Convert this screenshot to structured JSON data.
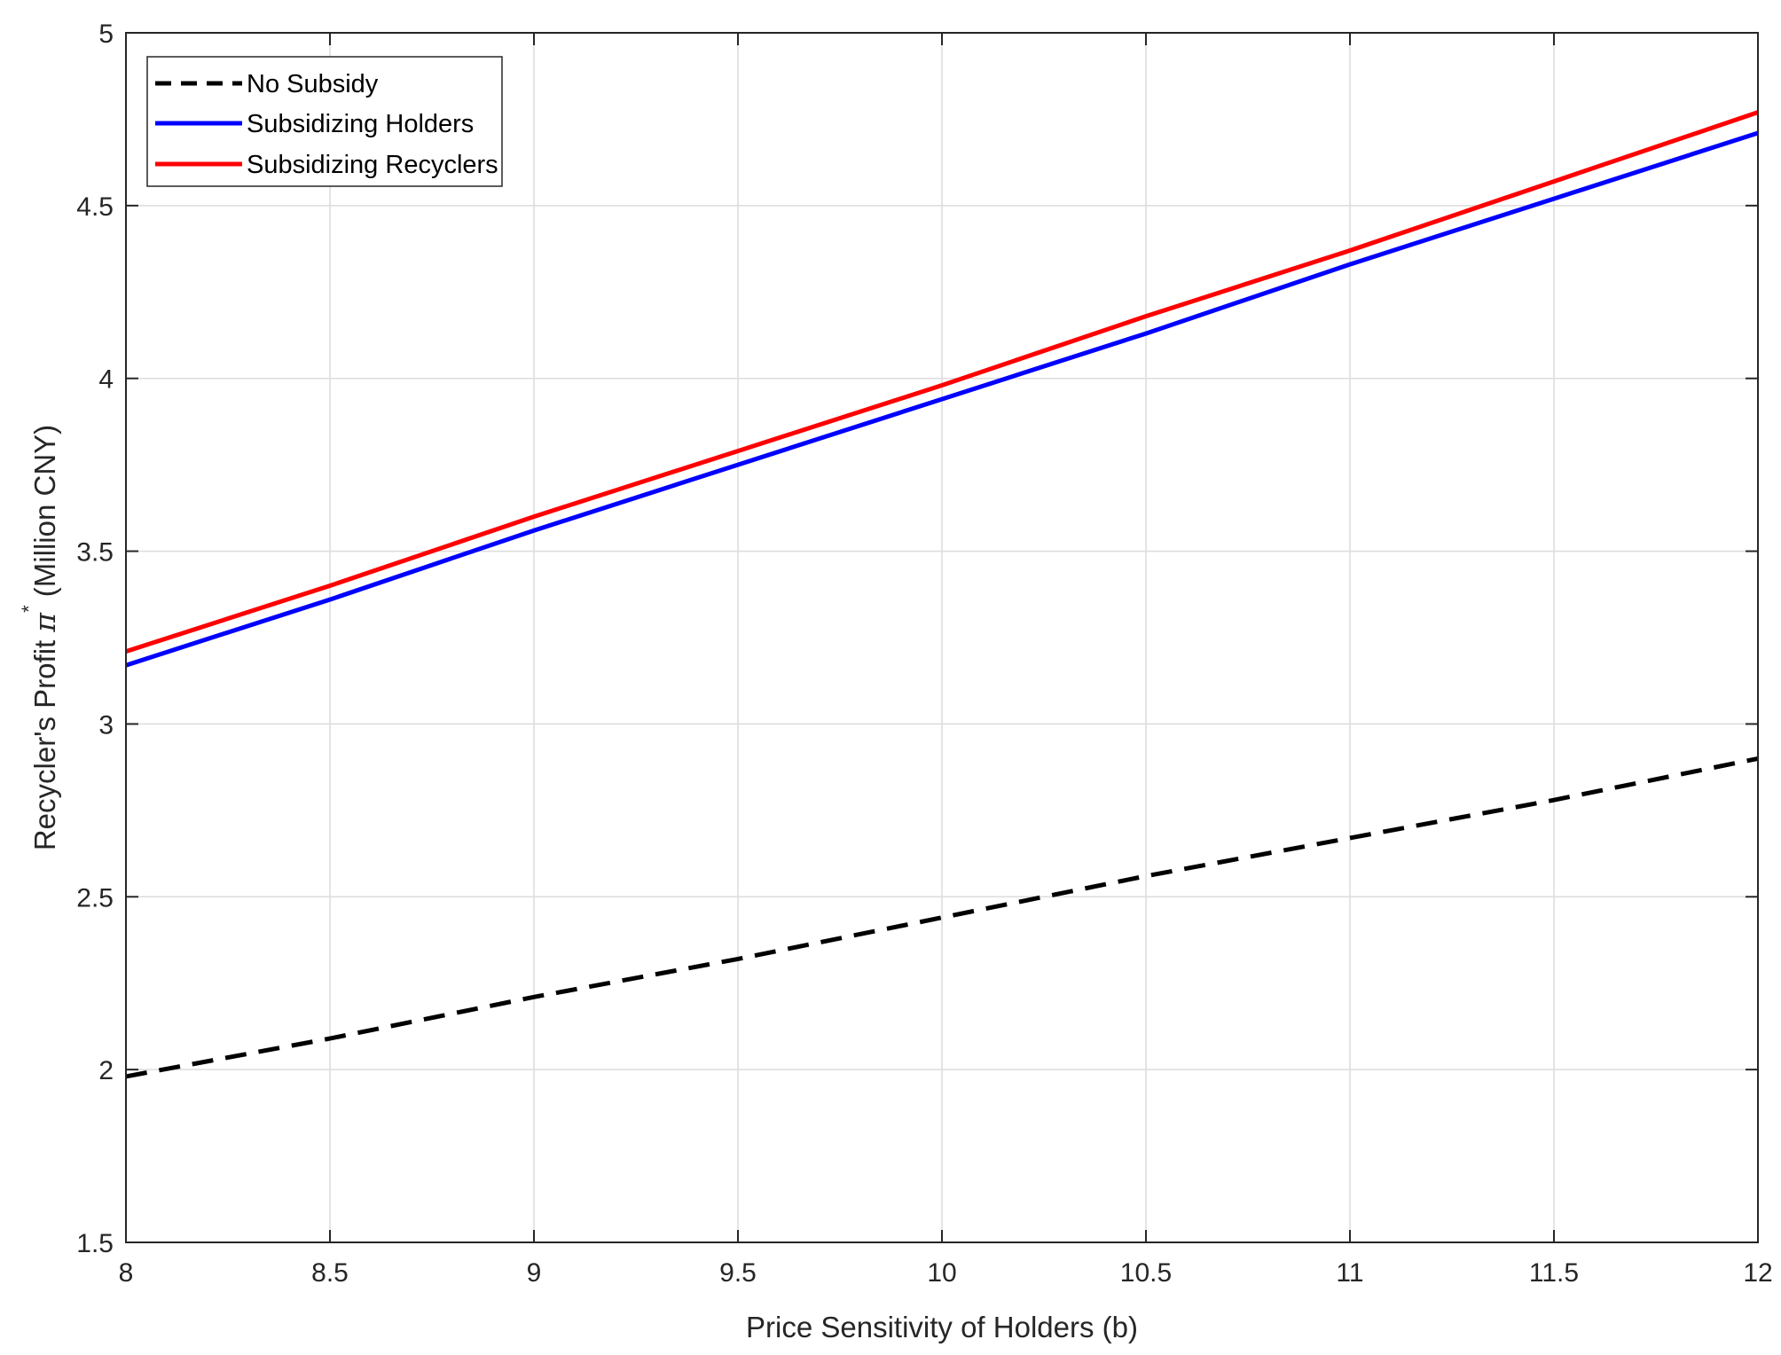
{
  "chart_data": {
    "type": "line",
    "title": "",
    "xlabel": "Price Sensitivity of Holders (b)",
    "ylabel": {
      "main": "Recycler's Profit ",
      "symbol": "π",
      "superscript": "*",
      "units": " (Million CNY)"
    },
    "xlim": [
      8,
      12
    ],
    "ylim": [
      1.5,
      5
    ],
    "xticks": [
      8,
      8.5,
      9,
      9.5,
      10,
      10.5,
      11,
      11.5,
      12
    ],
    "yticks": [
      1.5,
      2,
      2.5,
      3,
      3.5,
      4,
      4.5,
      5
    ],
    "xtick_labels": [
      "8",
      "8.5",
      "9",
      "9.5",
      "10",
      "10.5",
      "11",
      "11.5",
      "12"
    ],
    "ytick_labels": [
      "1.5",
      "2",
      "2.5",
      "3",
      "3.5",
      "4",
      "4.5",
      "5"
    ],
    "grid": true,
    "legend_position": "top-left",
    "series": [
      {
        "name": "No Subsidy",
        "color": "#000000",
        "style": "dashed",
        "x": [
          8,
          8.5,
          9,
          9.5,
          10,
          10.5,
          11,
          11.5,
          12
        ],
        "y": [
          1.98,
          2.09,
          2.21,
          2.32,
          2.44,
          2.56,
          2.67,
          2.78,
          2.9
        ]
      },
      {
        "name": "Subsidizing Holders",
        "color": "#0000ff",
        "style": "solid",
        "x": [
          8,
          8.5,
          9,
          9.5,
          10,
          10.5,
          11,
          11.5,
          12
        ],
        "y": [
          3.17,
          3.36,
          3.56,
          3.75,
          3.94,
          4.13,
          4.33,
          4.52,
          4.71
        ]
      },
      {
        "name": "Subsidizing Recyclers",
        "color": "#ff0000",
        "style": "solid",
        "x": [
          8,
          8.5,
          9,
          9.5,
          10,
          10.5,
          11,
          11.5,
          12
        ],
        "y": [
          3.21,
          3.4,
          3.6,
          3.79,
          3.98,
          4.18,
          4.37,
          4.57,
          4.77
        ]
      }
    ]
  }
}
